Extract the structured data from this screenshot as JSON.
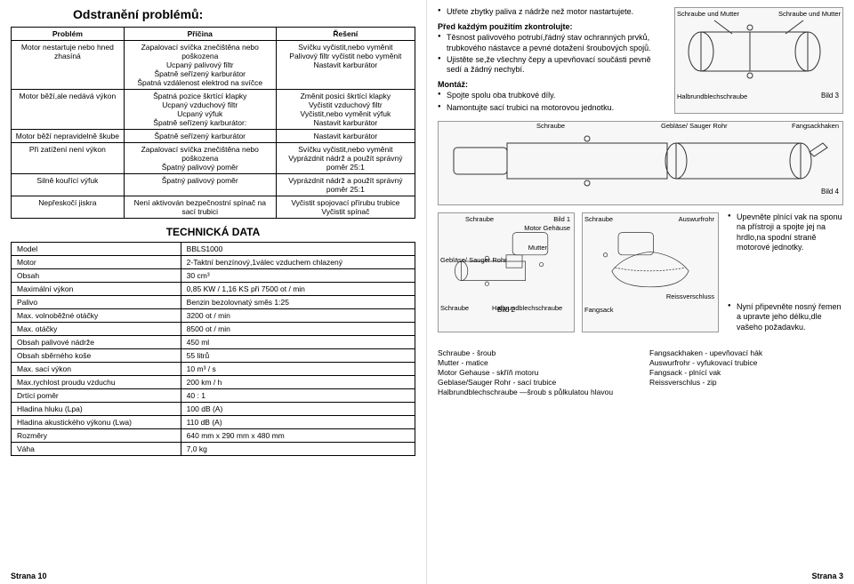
{
  "left": {
    "title": "Odstranění problémů:",
    "headers": [
      "Problém",
      "Příčina",
      "Řešení"
    ],
    "rows": [
      [
        "Motor nestartuje nebo hned zhasíná",
        "Zapalovací svíčka znečištěna nebo poškozena\nUcpaný palivový filtr\nŠpatně seřízený karburátor\nŠpatná vzdálenost elektrod na svíčce",
        "Svíčku vyčistit,nebo vyměnit\nPalivový filtr vyčistit nebo vyměnit\nNastavit karburátor"
      ],
      [
        "Motor běží,ale nedává výkon",
        "Špatná pozice škrtící klapky\nUcpaný vzduchový filtr\nUcpaný výfuk\nŠpatně seřízený karburátor:",
        "Změnit posici škrtící klapky\nVyčistit vzduchový filtr\nVyčistit,nebo vyměnit výfuk\nNastavit karburátor"
      ],
      [
        "Motor běží nepravidelně škube",
        "Špatně seřízený karburátor",
        "Nastavit karburátor"
      ],
      [
        "Při zatížení není výkon",
        "Zapalovací svíčka znečištěna nebo poškozena\nŠpatný palivový poměr",
        "Svíčku vyčistit,nebo vyměnit\nVyprázdnit nádrž a použít správný poměr 25:1"
      ],
      [
        "Silně kouřící výfuk",
        "Špatný palivový poměr",
        "Vyprázdnit nádrž a použít správný poměr 25:1"
      ],
      [
        "Nepřeskočí jiskra",
        "Není aktivován bezpečnostní spínač na sací trubici",
        "Vyčistit spojovací přírubu trubice\nVyčistit spínač"
      ]
    ],
    "tech_title": "TECHNICKÁ DATA",
    "tech_rows": [
      [
        "Model",
        "BBLS1000"
      ],
      [
        "Motor",
        "2-Taktní benzínový,1válec vzduchem chlazený"
      ],
      [
        "Obsah",
        "30 cm³"
      ],
      [
        "Maximální výkon",
        "0,85 KW / 1,16 KS při 7500 ot / min"
      ],
      [
        "Palivo",
        "Benzin bezolovnatý směs 1:25"
      ],
      [
        "Max. volnoběžné otáčky",
        "3200 ot / min"
      ],
      [
        "Max. otáčky",
        "8500 ot / min"
      ],
      [
        "Obsah palivové nádrže",
        "450 ml"
      ],
      [
        "Obsah sběrného koše",
        "55 litrů"
      ],
      [
        "Max. sací výkon",
        "10 m³ / s"
      ],
      [
        "Max.rychlost proudu vzduchu",
        "200 km / h"
      ],
      [
        "Drtící poměr",
        "40 : 1"
      ],
      [
        "Hladina hluku (Lpa)",
        "100 dB (A)"
      ],
      [
        "Hladina akustického výkonu (Lwa)",
        "110 dB (A)"
      ],
      [
        "Rozměry",
        "640 mm x 290 mm x 480 mm"
      ],
      [
        "Váha",
        "7,0 kg"
      ]
    ],
    "footer": "Strana 10"
  },
  "right": {
    "bullets1": [
      "Utřete zbytky paliva z nádrže než motor nastartujete."
    ],
    "subhead1": "Před každým použitím zkontrolujte:",
    "bullets2": [
      "Těsnost palivového potrubí,řádný stav ochranných prvků, trubkového nástavce a pevné dotažení šroubových spojů.",
      "Ujistěte se,že všechny čepy a upevňovací součásti pevně sedí a žádný nechybí."
    ],
    "subhead2": "Montáž:",
    "bullets3": [
      "Spojte spolu oba trubkové díly.",
      "Namontujte sací trubici na motorovou jednotku."
    ],
    "bullets4": [
      "Upevněte plnící vak na sponu na přístroji a spojte jej na hrdlo,na spodní straně motorové jednotky."
    ],
    "bullets5": [
      "Nyní připevněte nosný řemen a upravte jeho délku,dle vašeho požadavku."
    ],
    "diag": {
      "bild1": "Bild 1",
      "bild2": "Bild 2",
      "bild3": "Bild 3",
      "bild4": "Bild 4",
      "labels": {
        "schraube_mutter": "Schraube und Mutter",
        "halbrund": "Halbrundblechschraube",
        "schraube_mutter2": "Schraube und Mutter",
        "schraube": "Schraube",
        "geblase": "Gebläse/ Sauger Rohr",
        "fangsack": "Fangsackhaken",
        "motor_gehause": "Motor Gehäuse",
        "mutter": "Mutter",
        "auswurf": "Auswurfrohr",
        "reiss": "Reissverschluss",
        "fangsack2": "Fangsack"
      }
    },
    "legend_left": "Schraube   -    šroub\nMutter        -    matice\nMotor Gehause  -  skříň motoru\nGeblase/Sauger Rohr  -  sací trubice\nHalbrundblechschraube —šroub s půlkulatou hlavou",
    "legend_right": "Fangsackhaken  -  upevňovací hák\nAuswurfrohr  -  vyfukovací trubice\nFangsack  -  plnící vak\nReissverschlus  -  zip",
    "footer": "Strana 3"
  }
}
